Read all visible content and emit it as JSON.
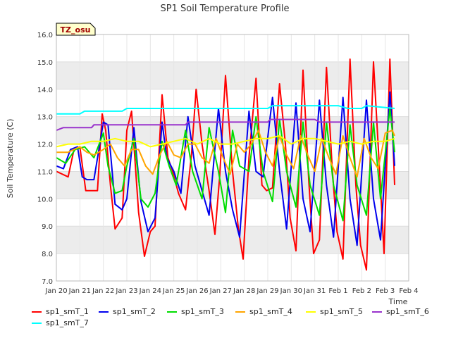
{
  "chart_data": {
    "type": "line",
    "title": "SP1 Soil Temperature Profile",
    "ylabel": "Soil Temperature (C)",
    "xlabel": "Time",
    "ylim": [
      7.0,
      16.0
    ],
    "yticks": [
      "7.0",
      "8.0",
      "9.0",
      "10.0",
      "11.0",
      "12.0",
      "13.0",
      "14.0",
      "15.0",
      "16.0"
    ],
    "xticks": [
      "Jan 20",
      "Jan 21",
      "Jan 22",
      "Jan 23",
      "Jan 24",
      "Jan 25",
      "Jan 26",
      "Jan 27",
      "Jan 28",
      "Jan 29",
      "Jan 30",
      "Jan 31",
      "Feb 1",
      "Feb 2",
      "Feb 3",
      "Feb 4"
    ],
    "xrange_days": [
      0,
      15
    ],
    "grid": true,
    "legend_position": "bottom",
    "annotation": "TZ_osu",
    "colors": {
      "sp1_smT_1": "#ff0000",
      "sp1_smT_2": "#0000ee",
      "sp1_smT_3": "#00dd00",
      "sp1_smT_4": "#ffa500",
      "sp1_smT_5": "#ffff00",
      "sp1_smT_6": "#9933cc",
      "sp1_smT_7": "#00ffff"
    },
    "series": [
      {
        "name": "sp1_smT_1",
        "x": [
          0.0,
          0.5,
          0.75,
          1.0,
          1.25,
          1.5,
          1.75,
          1.95,
          2.1,
          2.3,
          2.5,
          2.8,
          3.0,
          3.2,
          3.5,
          3.75,
          4.0,
          4.2,
          4.5,
          4.75,
          4.95,
          5.2,
          5.5,
          5.75,
          5.95,
          6.2,
          6.5,
          6.75,
          6.95,
          7.2,
          7.5,
          7.75,
          7.95,
          8.2,
          8.5,
          8.75,
          8.95,
          9.2,
          9.5,
          9.75,
          9.95,
          10.2,
          10.5,
          10.75,
          10.95,
          11.2,
          11.5,
          11.75,
          11.95,
          12.2,
          12.5,
          12.75,
          12.95,
          13.2,
          13.5,
          13.75,
          13.95,
          14.2,
          14.4
        ],
        "values": [
          11.0,
          10.8,
          11.8,
          11.9,
          10.3,
          10.3,
          10.3,
          13.1,
          12.5,
          10.5,
          8.9,
          9.3,
          12.5,
          13.2,
          9.5,
          7.9,
          8.8,
          9.0,
          13.8,
          11.5,
          11.0,
          10.2,
          9.6,
          11.6,
          14.0,
          12.0,
          10.3,
          8.7,
          10.8,
          14.5,
          11.0,
          8.9,
          7.8,
          11.5,
          14.4,
          10.5,
          10.3,
          10.4,
          14.2,
          12.0,
          9.3,
          8.1,
          14.7,
          10.6,
          8.0,
          8.5,
          14.8,
          11.0,
          8.8,
          7.8,
          15.1,
          10.5,
          8.3,
          7.4,
          15.0,
          11.2,
          8.0,
          15.1,
          10.5
        ]
      },
      {
        "name": "sp1_smT_2",
        "x": [
          0.0,
          0.3,
          0.6,
          0.9,
          1.1,
          1.3,
          1.6,
          2.0,
          2.2,
          2.5,
          2.8,
          3.0,
          3.3,
          3.6,
          3.9,
          4.2,
          4.5,
          4.7,
          5.0,
          5.3,
          5.6,
          5.9,
          6.2,
          6.5,
          6.9,
          7.2,
          7.5,
          7.8,
          8.2,
          8.5,
          8.8,
          9.2,
          9.5,
          9.8,
          10.2,
          10.5,
          10.8,
          11.2,
          11.5,
          11.8,
          12.2,
          12.5,
          12.8,
          13.2,
          13.5,
          13.8,
          14.2,
          14.4
        ],
        "values": [
          11.2,
          11.1,
          11.8,
          11.9,
          10.8,
          10.7,
          10.7,
          12.8,
          12.7,
          9.8,
          9.6,
          10.0,
          12.6,
          9.9,
          8.8,
          9.3,
          12.8,
          11.5,
          11.0,
          10.2,
          13.0,
          11.2,
          10.3,
          9.4,
          13.3,
          11.0,
          9.6,
          8.6,
          13.2,
          11.0,
          10.8,
          13.7,
          11.0,
          8.9,
          13.5,
          10.0,
          8.8,
          13.6,
          10.5,
          8.6,
          13.7,
          10.0,
          8.3,
          13.6,
          10.0,
          8.5,
          13.9,
          11.2
        ]
      },
      {
        "name": "sp1_smT_3",
        "x": [
          0.0,
          0.4,
          0.8,
          1.2,
          1.6,
          2.0,
          2.2,
          2.5,
          2.8,
          3.0,
          3.3,
          3.6,
          3.9,
          4.2,
          4.5,
          4.8,
          5.1,
          5.5,
          5.8,
          6.2,
          6.5,
          6.9,
          7.2,
          7.5,
          7.8,
          8.2,
          8.5,
          8.8,
          9.2,
          9.5,
          9.8,
          10.2,
          10.5,
          10.8,
          11.2,
          11.5,
          11.8,
          12.2,
          12.5,
          12.8,
          13.2,
          13.5,
          13.8,
          14.2,
          14.4
        ],
        "values": [
          11.5,
          11.3,
          11.8,
          11.9,
          11.5,
          12.4,
          11.2,
          10.2,
          10.3,
          11.2,
          12.2,
          10.0,
          9.7,
          10.2,
          12.1,
          11.2,
          10.5,
          12.5,
          11.0,
          10.0,
          12.6,
          11.0,
          9.5,
          12.5,
          11.2,
          11.0,
          13.0,
          11.0,
          9.9,
          12.9,
          11.0,
          9.7,
          12.8,
          10.5,
          9.4,
          12.8,
          10.5,
          9.2,
          12.7,
          10.5,
          9.4,
          12.8,
          10.0,
          13.3,
          11.7
        ]
      },
      {
        "name": "sp1_smT_4",
        "x": [
          0.0,
          0.5,
          1.0,
          1.3,
          1.6,
          2.0,
          2.3,
          2.6,
          2.9,
          3.2,
          3.5,
          3.8,
          4.1,
          4.4,
          4.7,
          5.0,
          5.3,
          5.6,
          5.9,
          6.2,
          6.5,
          6.8,
          7.1,
          7.4,
          7.7,
          8.0,
          8.3,
          8.6,
          8.9,
          9.2,
          9.5,
          9.8,
          10.1,
          10.4,
          10.7,
          11.0,
          11.3,
          11.6,
          11.9,
          12.2,
          12.5,
          12.8,
          13.1,
          13.4,
          13.7,
          14.0,
          14.3,
          14.4
        ],
        "values": [
          11.7,
          11.7,
          11.9,
          11.7,
          11.6,
          11.8,
          12.0,
          11.5,
          11.2,
          11.8,
          11.8,
          11.2,
          10.9,
          11.6,
          12.1,
          11.6,
          11.5,
          12.0,
          12.0,
          11.5,
          11.3,
          12.2,
          11.5,
          10.9,
          12.0,
          11.7,
          12.0,
          12.5,
          11.7,
          11.2,
          12.3,
          11.6,
          11.1,
          12.3,
          11.6,
          11.0,
          12.2,
          11.5,
          10.9,
          12.3,
          11.5,
          10.8,
          12.2,
          11.5,
          11.1,
          12.4,
          12.5,
          12.3
        ]
      },
      {
        "name": "sp1_smT_5",
        "x": [
          0.0,
          0.5,
          1.0,
          1.5,
          2.0,
          2.5,
          3.0,
          3.5,
          4.0,
          4.5,
          5.0,
          5.5,
          6.0,
          6.5,
          7.0,
          7.5,
          8.0,
          8.5,
          9.0,
          9.5,
          10.0,
          10.5,
          11.0,
          11.5,
          12.0,
          12.5,
          13.0,
          13.5,
          14.0,
          14.4
        ],
        "values": [
          11.9,
          12.0,
          12.0,
          12.1,
          12.1,
          12.2,
          12.1,
          12.1,
          11.9,
          12.0,
          12.1,
          12.2,
          12.0,
          12.2,
          12.0,
          12.0,
          12.1,
          12.2,
          12.2,
          12.3,
          12.0,
          12.2,
          12.2,
          12.1,
          12.0,
          12.1,
          12.0,
          12.1,
          12.1,
          12.2
        ]
      },
      {
        "name": "sp1_smT_6",
        "x": [
          0.0,
          0.3,
          0.6,
          1.5,
          1.6,
          2.0,
          5.5,
          5.6,
          9.0,
          9.1,
          11.0,
          11.2,
          14.4
        ],
        "values": [
          12.5,
          12.6,
          12.6,
          12.6,
          12.7,
          12.7,
          12.7,
          12.8,
          12.8,
          12.9,
          12.9,
          12.8,
          12.8
        ]
      },
      {
        "name": "sp1_smT_7",
        "x": [
          0.0,
          0.6,
          1.0,
          1.2,
          2.0,
          2.8,
          3.0,
          7.0,
          8.0,
          9.0,
          9.2,
          12.0,
          12.4,
          12.6,
          13.0,
          13.2,
          14.4
        ],
        "values": [
          13.1,
          13.1,
          13.1,
          13.2,
          13.2,
          13.2,
          13.3,
          13.3,
          13.3,
          13.3,
          13.4,
          13.4,
          13.3,
          13.3,
          13.3,
          13.4,
          13.3
        ]
      }
    ]
  }
}
